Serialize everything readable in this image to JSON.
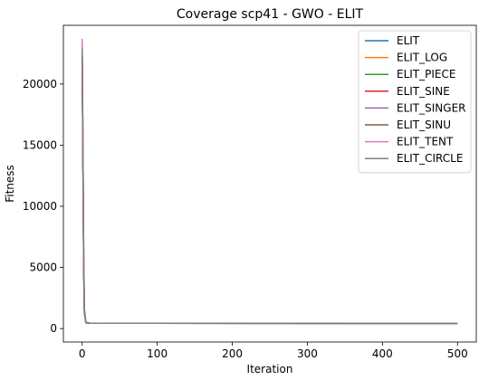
{
  "chart_data": {
    "type": "line",
    "title": "Coverage scp41 - GWO - ELIT",
    "xlabel": "Iteration",
    "ylabel": "Fitness",
    "xlim": [
      -25,
      525
    ],
    "ylim": [
      -1100,
      24800
    ],
    "xticks": [
      0,
      100,
      200,
      300,
      400,
      500
    ],
    "yticks": [
      0,
      5000,
      10000,
      15000,
      20000
    ],
    "legend_position": "top-right",
    "grid": false,
    "series": [
      {
        "name": "ELIT",
        "color": "#1f77b4",
        "x": [
          0,
          1,
          2,
          3,
          5,
          10,
          50,
          100,
          200,
          300,
          400,
          500
        ],
        "y": [
          23000,
          15000,
          6000,
          1500,
          500,
          440,
          435,
          432,
          430,
          430,
          429,
          429
        ]
      },
      {
        "name": "ELIT_LOG",
        "color": "#ff7f0e",
        "x": [
          0,
          1,
          2,
          3,
          5,
          10,
          50,
          100,
          200,
          300,
          400,
          500
        ],
        "y": [
          22800,
          14500,
          5500,
          1400,
          480,
          445,
          438,
          434,
          432,
          431,
          430,
          430
        ]
      },
      {
        "name": "ELIT_PIECE",
        "color": "#2ca02c",
        "x": [
          0,
          1,
          2,
          3,
          5,
          10,
          50,
          100,
          200,
          300,
          400,
          500
        ],
        "y": [
          22500,
          14000,
          5200,
          1300,
          470,
          440,
          434,
          431,
          430,
          429,
          429,
          429
        ]
      },
      {
        "name": "ELIT_SINE",
        "color": "#d62728",
        "x": [
          0,
          1,
          2,
          3,
          5,
          10,
          50,
          100,
          200,
          300,
          400,
          500
        ],
        "y": [
          22600,
          14200,
          5300,
          1350,
          475,
          442,
          436,
          432,
          431,
          430,
          430,
          430
        ]
      },
      {
        "name": "ELIT_SINGER",
        "color": "#9467bd",
        "x": [
          0,
          1,
          2,
          3,
          5,
          10,
          50,
          100,
          200,
          300,
          400,
          500
        ],
        "y": [
          22700,
          14300,
          5400,
          1380,
          478,
          443,
          437,
          433,
          431,
          430,
          430,
          430
        ]
      },
      {
        "name": "ELIT_SINU",
        "color": "#8c564b",
        "x": [
          0,
          1,
          2,
          3,
          5,
          10,
          50,
          100,
          200,
          300,
          400,
          500
        ],
        "y": [
          22400,
          13800,
          5000,
          1250,
          465,
          441,
          435,
          432,
          430,
          430,
          429,
          429
        ]
      },
      {
        "name": "ELIT_TENT",
        "color": "#e377c2",
        "x": [
          0,
          1,
          2,
          3,
          5,
          10,
          50,
          100,
          200,
          300,
          400,
          500
        ],
        "y": [
          23700,
          16000,
          6500,
          1600,
          510,
          446,
          439,
          435,
          433,
          432,
          431,
          431
        ]
      },
      {
        "name": "ELIT_CIRCLE",
        "color": "#7f7f7f",
        "x": [
          0,
          1,
          2,
          3,
          5,
          10,
          50,
          100,
          200,
          300,
          400,
          500
        ],
        "y": [
          23000,
          15200,
          6100,
          1520,
          505,
          444,
          437,
          433,
          431,
          430,
          430,
          430
        ]
      }
    ]
  }
}
